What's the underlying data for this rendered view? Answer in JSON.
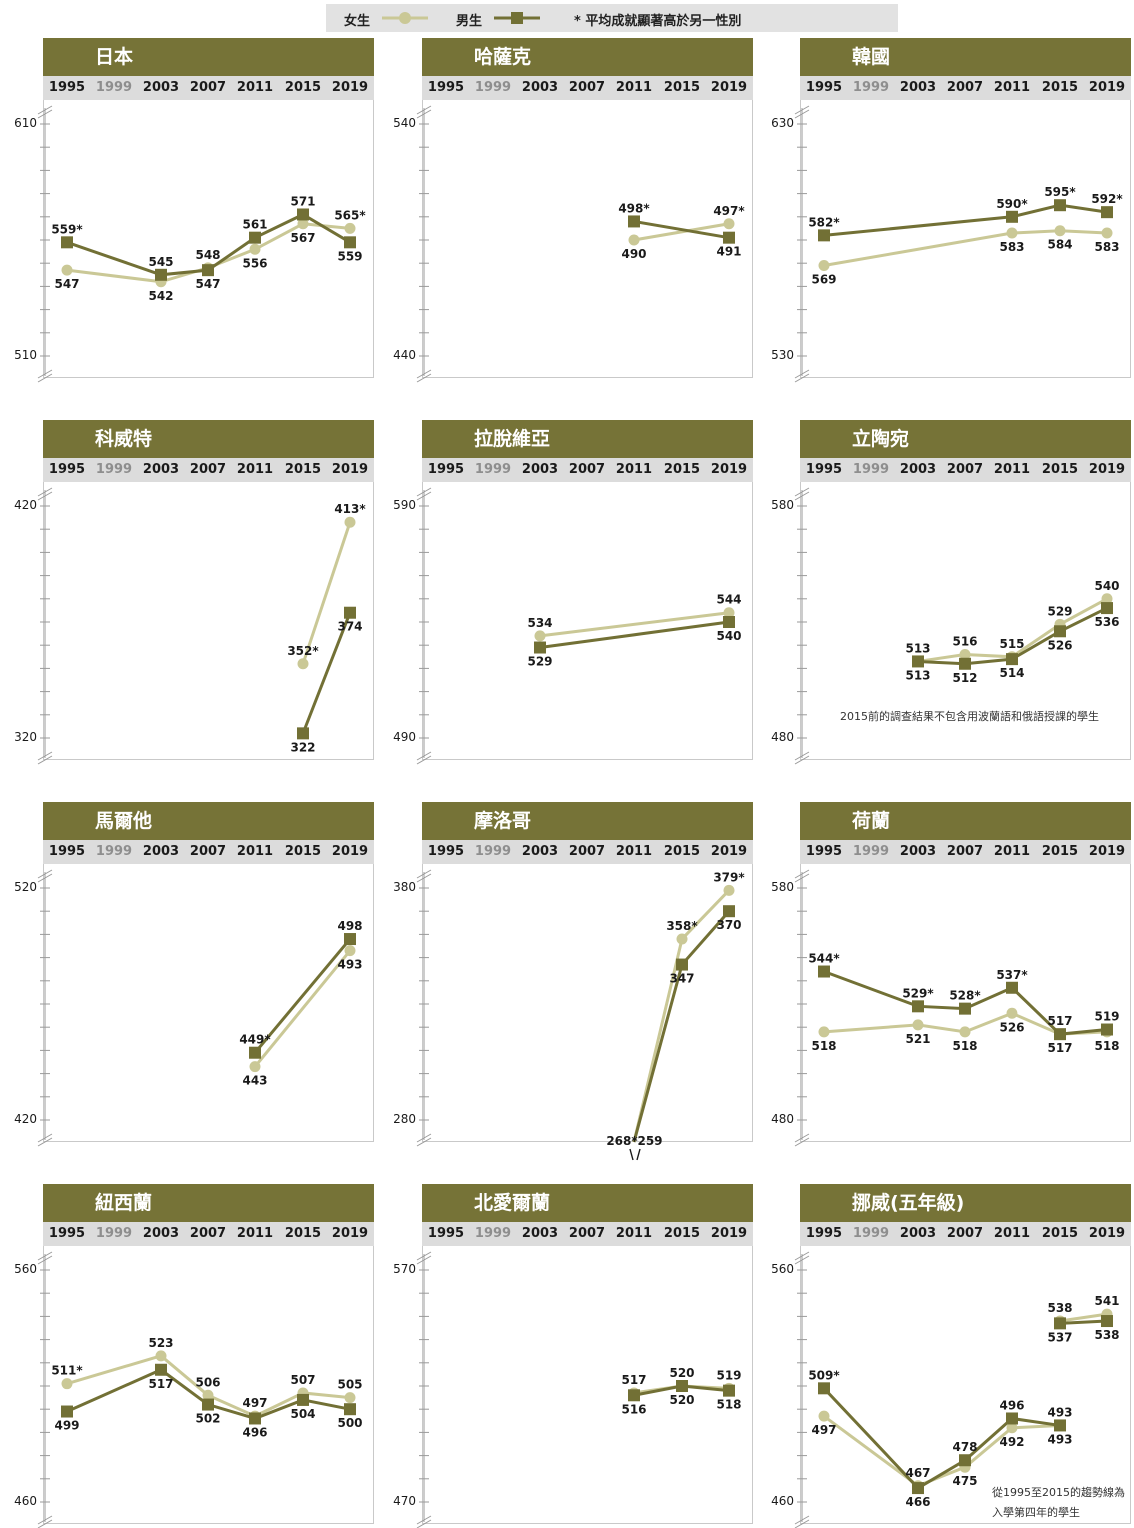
{
  "legend": {
    "girls": "女生",
    "boys": "男生",
    "note": "* 平均成就顯著高於另一性別"
  },
  "colors": {
    "girls": "#cac896",
    "boys": "#727035",
    "header": "#767337",
    "yearbar": "#dcdcdc"
  },
  "years": [
    "1995",
    "1999",
    "2003",
    "2007",
    "2011",
    "2015",
    "2019"
  ],
  "chart_data": [
    {
      "type": "line",
      "title": "日本",
      "ylim": [
        510,
        610
      ],
      "yticks": [
        "610",
        "510"
      ],
      "series": [
        {
          "name": "女生",
          "points": [
            {
              "x": "1995",
              "y": 547,
              "label": "547"
            },
            {
              "x": "2003",
              "y": 542,
              "label": "542"
            },
            {
              "x": "2007",
              "y": 548,
              "label": "548"
            },
            {
              "x": "2011",
              "y": 556,
              "label": "556"
            },
            {
              "x": "2015",
              "y": 567,
              "label": "567"
            },
            {
              "x": "2019",
              "y": 565,
              "label": "565*"
            }
          ]
        },
        {
          "name": "男生",
          "points": [
            {
              "x": "1995",
              "y": 559,
              "label": "559*"
            },
            {
              "x": "2003",
              "y": 545,
              "label": "545"
            },
            {
              "x": "2007",
              "y": 547,
              "label": "547"
            },
            {
              "x": "2011",
              "y": 561,
              "label": "561"
            },
            {
              "x": "2015",
              "y": 571,
              "label": "571"
            },
            {
              "x": "2019",
              "y": 559,
              "label": "559"
            }
          ]
        }
      ]
    },
    {
      "type": "line",
      "title": "哈薩克",
      "ylim": [
        440,
        540
      ],
      "yticks": [
        "540",
        "440"
      ],
      "series": [
        {
          "name": "女生",
          "points": [
            {
              "x": "2011",
              "y": 490,
              "label": "490"
            },
            {
              "x": "2019",
              "y": 497,
              "label": "497*"
            }
          ]
        },
        {
          "name": "男生",
          "points": [
            {
              "x": "2011",
              "y": 498,
              "label": "498*"
            },
            {
              "x": "2019",
              "y": 491,
              "label": "491"
            }
          ]
        }
      ]
    },
    {
      "type": "line",
      "title": "韓國",
      "ylim": [
        530,
        630
      ],
      "yticks": [
        "630",
        "530"
      ],
      "series": [
        {
          "name": "女生",
          "points": [
            {
              "x": "1995",
              "y": 569,
              "label": "569"
            },
            {
              "x": "2011",
              "y": 583,
              "label": "583"
            },
            {
              "x": "2015",
              "y": 584,
              "label": "584"
            },
            {
              "x": "2019",
              "y": 583,
              "label": "583"
            }
          ]
        },
        {
          "name": "男生",
          "points": [
            {
              "x": "1995",
              "y": 582,
              "label": "582*"
            },
            {
              "x": "2011",
              "y": 590,
              "label": "590*"
            },
            {
              "x": "2015",
              "y": 595,
              "label": "595*"
            },
            {
              "x": "2019",
              "y": 592,
              "label": "592*"
            }
          ]
        }
      ]
    },
    {
      "type": "line",
      "title": "科威特",
      "ylim": [
        320,
        420
      ],
      "yticks": [
        "420",
        "320"
      ],
      "series": [
        {
          "name": "女生",
          "points": [
            {
              "x": "2015",
              "y": 352,
              "label": "352*"
            },
            {
              "x": "2019",
              "y": 413,
              "label": "413*"
            }
          ]
        },
        {
          "name": "男生",
          "points": [
            {
              "x": "2015",
              "y": 322,
              "label": "322"
            },
            {
              "x": "2019",
              "y": 374,
              "label": "374"
            }
          ]
        }
      ]
    },
    {
      "type": "line",
      "title": "拉脫維亞",
      "ylim": [
        490,
        590
      ],
      "yticks": [
        "590",
        "490"
      ],
      "series": [
        {
          "name": "女生",
          "points": [
            {
              "x": "2003",
              "y": 534,
              "label": "534"
            },
            {
              "x": "2019",
              "y": 544,
              "label": "544"
            }
          ]
        },
        {
          "name": "男生",
          "points": [
            {
              "x": "2003",
              "y": 529,
              "label": "529"
            },
            {
              "x": "2019",
              "y": 540,
              "label": "540"
            }
          ]
        }
      ]
    },
    {
      "type": "line",
      "title": "立陶宛",
      "ylim": [
        480,
        580
      ],
      "yticks": [
        "580",
        "480"
      ],
      "note": "2015前的調查結果不包含用波蘭語和俄語授課的學生",
      "series": [
        {
          "name": "女生",
          "points": [
            {
              "x": "2003",
              "y": 513,
              "label": "513"
            },
            {
              "x": "2007",
              "y": 516,
              "label": "516"
            },
            {
              "x": "2011",
              "y": 515,
              "label": "515"
            },
            {
              "x": "2015",
              "y": 529,
              "label": "529"
            },
            {
              "x": "2019",
              "y": 540,
              "label": "540"
            }
          ]
        },
        {
          "name": "男生",
          "points": [
            {
              "x": "2003",
              "y": 513,
              "label": "513"
            },
            {
              "x": "2007",
              "y": 512,
              "label": "512"
            },
            {
              "x": "2011",
              "y": 514,
              "label": "514"
            },
            {
              "x": "2015",
              "y": 526,
              "label": "526"
            },
            {
              "x": "2019",
              "y": 536,
              "label": "536"
            }
          ]
        }
      ]
    },
    {
      "type": "line",
      "title": "馬爾他",
      "ylim": [
        420,
        520
      ],
      "yticks": [
        "520",
        "420"
      ],
      "series": [
        {
          "name": "女生",
          "points": [
            {
              "x": "2011",
              "y": 443,
              "label": "443"
            },
            {
              "x": "2019",
              "y": 493,
              "label": "493"
            }
          ]
        },
        {
          "name": "男生",
          "points": [
            {
              "x": "2011",
              "y": 449,
              "label": "449*"
            },
            {
              "x": "2019",
              "y": 498,
              "label": "498"
            }
          ]
        }
      ]
    },
    {
      "type": "line",
      "title": "摩洛哥",
      "ylim": [
        280,
        380
      ],
      "yticks": [
        "380",
        "280"
      ],
      "series": [
        {
          "name": "女生",
          "points": [
            {
              "x": "2011",
              "y": 268,
              "label": "268*"
            },
            {
              "x": "2015",
              "y": 358,
              "label": "358*"
            },
            {
              "x": "2019",
              "y": 379,
              "label": "379*"
            }
          ]
        },
        {
          "name": "男生",
          "points": [
            {
              "x": "2011",
              "y": 259,
              "label": "259"
            },
            {
              "x": "2015",
              "y": 347,
              "label": "347"
            },
            {
              "x": "2019",
              "y": 370,
              "label": "370"
            }
          ]
        }
      ]
    },
    {
      "type": "line",
      "title": "荷蘭",
      "ylim": [
        480,
        580
      ],
      "yticks": [
        "580",
        "480"
      ],
      "series": [
        {
          "name": "女生",
          "points": [
            {
              "x": "1995",
              "y": 518,
              "label": "518"
            },
            {
              "x": "2003",
              "y": 521,
              "label": "521"
            },
            {
              "x": "2007",
              "y": 518,
              "label": "518"
            },
            {
              "x": "2011",
              "y": 526,
              "label": "526"
            },
            {
              "x": "2015",
              "y": 517,
              "label": "517"
            },
            {
              "x": "2019",
              "y": 518,
              "label": "518"
            }
          ]
        },
        {
          "name": "男生",
          "points": [
            {
              "x": "1995",
              "y": 544,
              "label": "544*"
            },
            {
              "x": "2003",
              "y": 529,
              "label": "529*"
            },
            {
              "x": "2007",
              "y": 528,
              "label": "528*"
            },
            {
              "x": "2011",
              "y": 537,
              "label": "537*"
            },
            {
              "x": "2015",
              "y": 517,
              "label": "517"
            },
            {
              "x": "2019",
              "y": 519,
              "label": "519"
            }
          ]
        }
      ]
    },
    {
      "type": "line",
      "title": "紐西蘭",
      "ylim": [
        460,
        560
      ],
      "yticks": [
        "560",
        "460"
      ],
      "series": [
        {
          "name": "女生",
          "points": [
            {
              "x": "1995",
              "y": 511,
              "label": "511*"
            },
            {
              "x": "2003",
              "y": 523,
              "label": "523"
            },
            {
              "x": "2007",
              "y": 506,
              "label": "506"
            },
            {
              "x": "2011",
              "y": 497,
              "label": "497"
            },
            {
              "x": "2015",
              "y": 507,
              "label": "507"
            },
            {
              "x": "2019",
              "y": 505,
              "label": "505"
            }
          ]
        },
        {
          "name": "男生",
          "points": [
            {
              "x": "1995",
              "y": 499,
              "label": "499"
            },
            {
              "x": "2003",
              "y": 517,
              "label": "517"
            },
            {
              "x": "2007",
              "y": 502,
              "label": "502"
            },
            {
              "x": "2011",
              "y": 496,
              "label": "496"
            },
            {
              "x": "2015",
              "y": 504,
              "label": "504"
            },
            {
              "x": "2019",
              "y": 500,
              "label": "500"
            }
          ]
        }
      ]
    },
    {
      "type": "line",
      "title": "北愛爾蘭",
      "ylim": [
        470,
        570
      ],
      "yticks": [
        "570",
        "470"
      ],
      "series": [
        {
          "name": "女生",
          "points": [
            {
              "x": "2011",
              "y": 517,
              "label": "517"
            },
            {
              "x": "2015",
              "y": 520,
              "label": "520"
            },
            {
              "x": "2019",
              "y": 519,
              "label": "519"
            }
          ]
        },
        {
          "name": "男生",
          "points": [
            {
              "x": "2011",
              "y": 516,
              "label": "516"
            },
            {
              "x": "2015",
              "y": 520,
              "label": "520"
            },
            {
              "x": "2019",
              "y": 518,
              "label": "518"
            }
          ]
        }
      ]
    },
    {
      "type": "line",
      "title": "挪威(五年級)",
      "ylim": [
        460,
        560
      ],
      "yticks": [
        "560",
        "460"
      ],
      "note": "從1995至2015的趨勢線為\n入學第四年的學生",
      "series": [
        {
          "name": "女生",
          "points": [
            {
              "x": "1995",
              "y": 497,
              "label": "497"
            },
            {
              "x": "2003",
              "y": 467,
              "label": "467"
            },
            {
              "x": "2007",
              "y": 475,
              "label": "475"
            },
            {
              "x": "2011",
              "y": 492,
              "label": "492"
            },
            {
              "x": "2015",
              "y": 493,
              "label": "493"
            }
          ],
          "extra": [
            {
              "x": "2015",
              "y": 538,
              "label": "538"
            },
            {
              "x": "2019",
              "y": 541,
              "label": "541"
            }
          ]
        },
        {
          "name": "男生",
          "points": [
            {
              "x": "1995",
              "y": 509,
              "label": "509*"
            },
            {
              "x": "2003",
              "y": 466,
              "label": "466"
            },
            {
              "x": "2007",
              "y": 478,
              "label": "478"
            },
            {
              "x": "2011",
              "y": 496,
              "label": "496"
            },
            {
              "x": "2015",
              "y": 493,
              "label": "493"
            }
          ],
          "extra": [
            {
              "x": "2015",
              "y": 537,
              "label": "537"
            },
            {
              "x": "2019",
              "y": 538,
              "label": "538"
            }
          ]
        }
      ]
    }
  ]
}
